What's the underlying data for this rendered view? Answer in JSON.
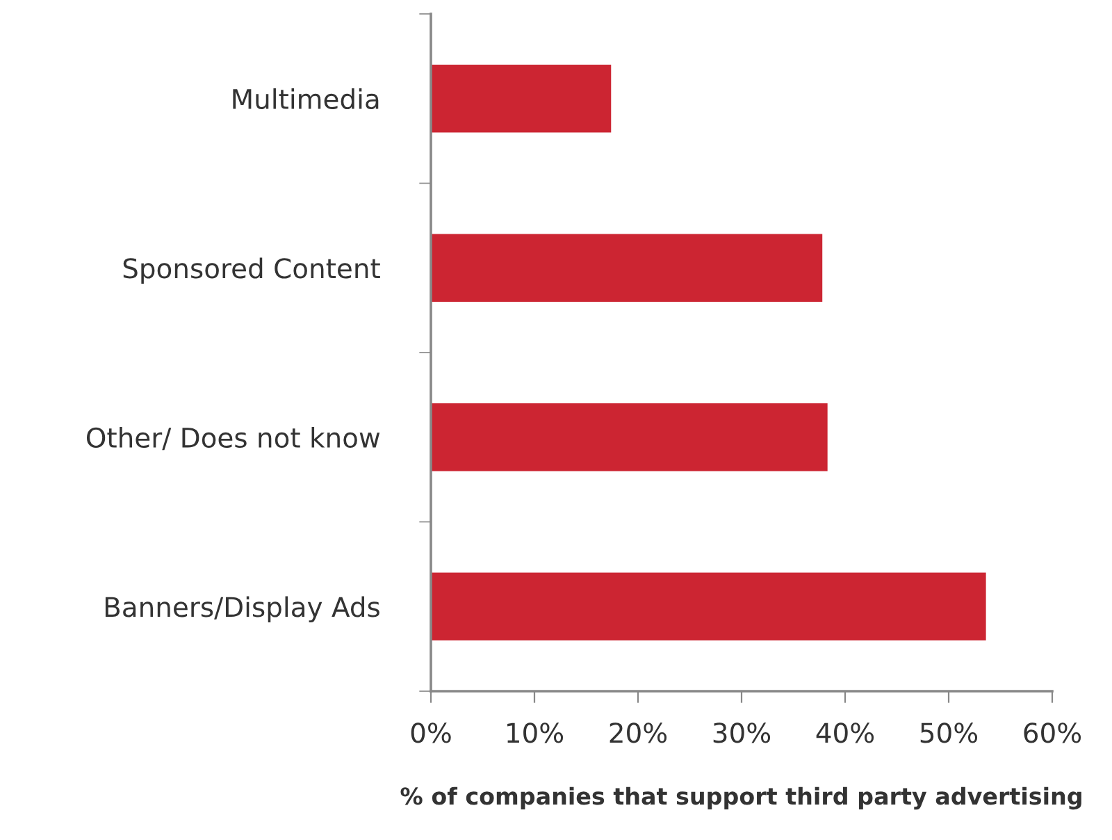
{
  "chart_data": {
    "type": "bar",
    "orientation": "horizontal",
    "xlabel": "% of companies that support third party advertising",
    "categories": [
      "Multimedia",
      "Sponsored Content",
      "Other/ Does not know",
      "Banners/Display Ads"
    ],
    "values": [
      17.4,
      37.8,
      38.3,
      53.6
    ],
    "color": "#cc2532",
    "xlim": [
      0,
      60
    ],
    "xticks": [
      {
        "value": 0,
        "label": "0%"
      },
      {
        "value": 10,
        "label": "10%"
      },
      {
        "value": 20,
        "label": "20%"
      },
      {
        "value": 30,
        "label": "30%"
      },
      {
        "value": 40,
        "label": "40%"
      },
      {
        "value": 50,
        "label": "50%"
      },
      {
        "value": 60,
        "label": "60%"
      }
    ],
    "grid": false,
    "legend": false
  }
}
